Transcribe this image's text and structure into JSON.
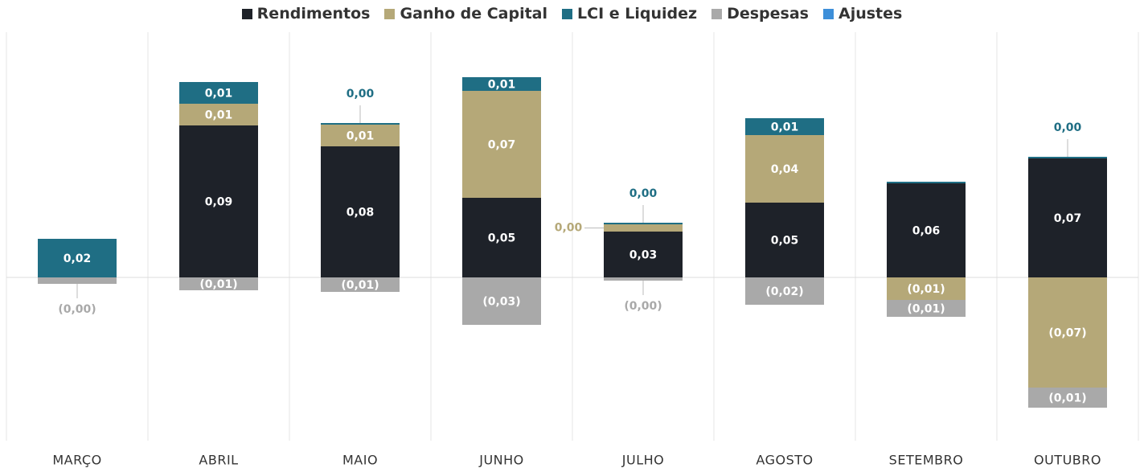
{
  "chart_data": {
    "type": "stacked-bar",
    "categories": [
      "MARÇO",
      "ABRIL",
      "MAIO",
      "JUNHO",
      "JULHO",
      "AGOSTO",
      "SETEMBRO",
      "OUTUBRO"
    ],
    "series": [
      {
        "name": "Rendimentos",
        "color": "#1e2229",
        "values": [
          0,
          0.0945,
          0.0815,
          0.0495,
          0.0285,
          0.0465,
          0.0585,
          0.074
        ],
        "value_labels": [
          null,
          "0,09",
          "0,08",
          "0,05",
          "0,03",
          "0,05",
          "0,06",
          "0,07"
        ]
      },
      {
        "name": "Ganho de Capital",
        "color": "#b5a878",
        "values": [
          0,
          0.0135,
          0.0135,
          0.0665,
          0.0045,
          0.042,
          -0.014,
          -0.0685
        ],
        "value_labels": [
          null,
          "0,01",
          "0,01",
          "0,07",
          "0,00",
          "0,04",
          "(0,01)",
          "(0,07)"
        ]
      },
      {
        "name": "LCI e Liquidez",
        "color": "#1f6e84",
        "values": [
          0.024,
          0.0135,
          0.001,
          0.0085,
          0.001,
          0.0105,
          0.001,
          0.001
        ],
        "value_labels": [
          "0,02",
          "0,01",
          "0,00",
          "0,01",
          "0,00",
          "0,01",
          null,
          "0,00"
        ]
      },
      {
        "name": "Despesas",
        "color": "#a9a9a9",
        "values": [
          -0.004,
          -0.008,
          -0.009,
          -0.0295,
          -0.002,
          -0.017,
          -0.0105,
          -0.0125
        ],
        "value_labels": [
          "(0,00)",
          "(0,01)",
          "(0,01)",
          "(0,03)",
          "(0,00)",
          "(0,02)",
          "(0,01)",
          "(0,01)"
        ]
      },
      {
        "name": "Ajustes",
        "color": "#3d8fd9",
        "values": [
          0,
          0,
          0,
          0,
          0,
          0,
          0,
          0
        ],
        "value_labels": [
          null,
          null,
          null,
          null,
          null,
          null,
          null,
          null
        ]
      }
    ]
  }
}
